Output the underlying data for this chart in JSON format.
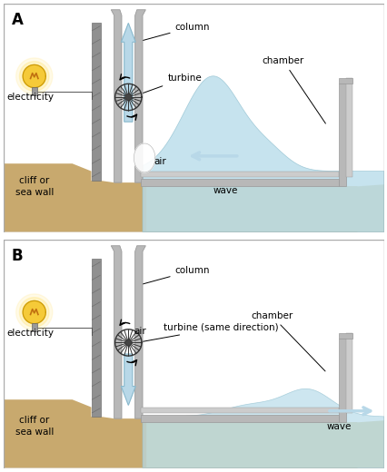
{
  "fig_width": 4.27,
  "fig_height": 5.2,
  "dpi": 100,
  "bg_color": "#ffffff",
  "sand_color": "#c8a96e",
  "seafloor_color": "#d0c898",
  "water_color": "#b8dcea",
  "water_edge": "#90c0d0",
  "wall_color": "#a8a8a8",
  "wall_dark": "#888888",
  "col_color": "#b8b8b8",
  "col_edge": "#999999",
  "arrow_fill": "#b8d8e8",
  "arrow_edge": "#88b8cc",
  "labels": {
    "A_col": "column",
    "A_turb": "turbine",
    "A_cham": "chamber",
    "A_air": "air",
    "A_wave": "wave",
    "A_elec": "electricity",
    "A_cliff": "cliff or\nsea wall",
    "B_col": "column",
    "B_turb": "turbine (same direction)",
    "B_cham": "chamber",
    "B_air": "air",
    "B_wave": "wave",
    "B_elec": "electricity",
    "B_cliff": "cliff or\nsea wall"
  }
}
